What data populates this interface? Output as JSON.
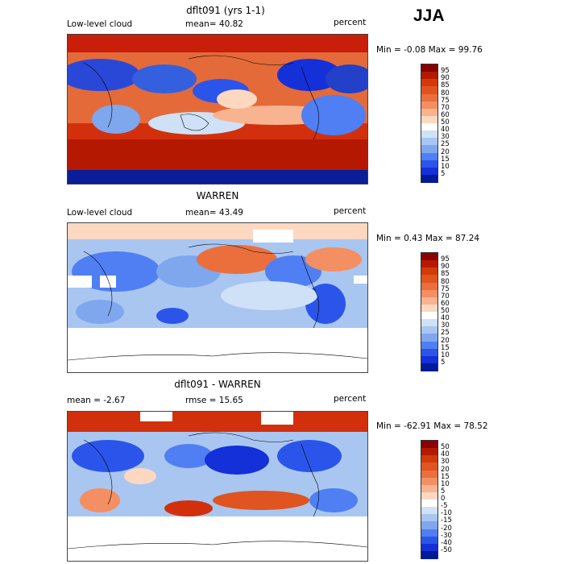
{
  "season": "JJA",
  "panels": [
    {
      "title": "dflt091 (yrs 1-1)",
      "left": "Low-level cloud",
      "mid": "mean=   40.82",
      "right": "percent",
      "minmax": "Min =   -0.08  Max =   99.76",
      "scale": "abs"
    },
    {
      "title": "WARREN",
      "left": "Low-level cloud",
      "mid": "mean=   43.49",
      "right": "percent",
      "minmax": "Min =    0.43  Max =   87.24",
      "scale": "abs"
    },
    {
      "title": "dflt091 - WARREN",
      "left": "mean =   -2.67",
      "mid": "rmse =   15.65",
      "right": "percent",
      "minmax": "Min =  -62.91  Max =   78.52",
      "scale": "diff"
    }
  ],
  "colorbars": {
    "abs": {
      "labels": [
        "95",
        "90",
        "85",
        "80",
        "75",
        "70",
        "60",
        "50",
        "40",
        "30",
        "25",
        "20",
        "15",
        "10",
        "5"
      ],
      "colors": [
        "#8b0000",
        "#b31a00",
        "#d23a0a",
        "#e0541f",
        "#ea6f3d",
        "#f38f62",
        "#f8b391",
        "#fcd8c1",
        "#ffffff",
        "#cfe1f6",
        "#a9c6f1",
        "#7ea7ee",
        "#4f7ff2",
        "#2b55ea",
        "#1430d8",
        "#001a9a"
      ]
    },
    "diff": {
      "labels": [
        "50",
        "40",
        "30",
        "20",
        "15",
        "10",
        "5",
        "0",
        "-5",
        "-10",
        "-15",
        "-20",
        "-30",
        "-40",
        "-50"
      ],
      "colors": [
        "#8b0000",
        "#b31a00",
        "#d23a0a",
        "#e0541f",
        "#ea6f3d",
        "#f38f62",
        "#f8b391",
        "#fcd8c1",
        "#ffffff",
        "#cfe1f6",
        "#a9c6f1",
        "#7ea7ee",
        "#4f7ff2",
        "#2b55ea",
        "#1430d8",
        "#001a9a"
      ]
    }
  }
}
